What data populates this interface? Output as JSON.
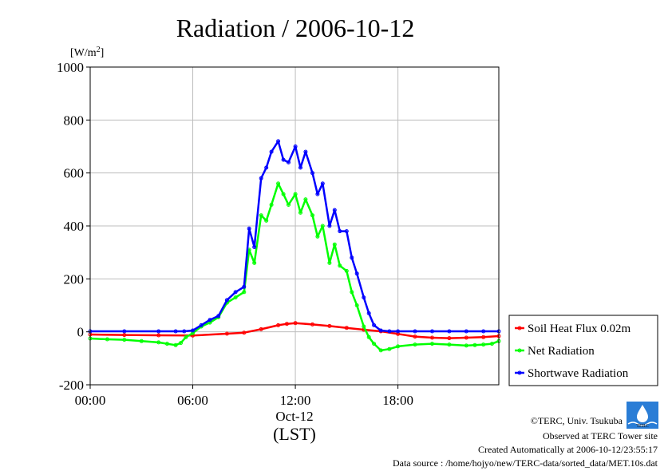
{
  "chart_data": {
    "type": "line",
    "title": "Radiation / 2006-10-12",
    "ylabel_unit": "[W/m",
    "ylabel_unit_sup": "2",
    "ylabel_unit_close": "]",
    "ylim": [
      -200,
      1000
    ],
    "yticks": [
      -200,
      0,
      200,
      400,
      600,
      800,
      1000
    ],
    "xlim": [
      0,
      23.9
    ],
    "xticks": [
      {
        "value": 0,
        "label": "00:00"
      },
      {
        "value": 6,
        "label": "06:00"
      },
      {
        "value": 12,
        "label": "12:00"
      },
      {
        "value": 18,
        "label": "18:00"
      }
    ],
    "date_label": "Oct-12",
    "xlabel": "(LST)",
    "grid": true,
    "legend_position": "right",
    "series": [
      {
        "name": "Soil Heat Flux 0.02m",
        "color": "#ff0000",
        "x": [
          0,
          2,
          4,
          6,
          8,
          9,
          10,
          11,
          11.5,
          12,
          13,
          14,
          15,
          16,
          17,
          18,
          19,
          20,
          21,
          22,
          23,
          23.9
        ],
        "y": [
          -10,
          -12,
          -13,
          -14,
          -7,
          -3,
          10,
          25,
          30,
          33,
          28,
          22,
          15,
          8,
          2,
          -8,
          -18,
          -22,
          -24,
          -22,
          -20,
          -16
        ]
      },
      {
        "name": "Net Radiation",
        "color": "#00ff00",
        "x": [
          0,
          1,
          2,
          3,
          4,
          4.5,
          5,
          5.3,
          5.6,
          6,
          6.5,
          7,
          7.5,
          8,
          8.5,
          9,
          9.3,
          9.6,
          10,
          10.3,
          10.6,
          11,
          11.3,
          11.6,
          12,
          12.3,
          12.6,
          13,
          13.3,
          13.6,
          14,
          14.3,
          14.6,
          15,
          15.3,
          15.6,
          16,
          16.3,
          16.6,
          17,
          17.5,
          18,
          19,
          20,
          21,
          22,
          22.5,
          23,
          23.5,
          23.9
        ],
        "y": [
          -25,
          -28,
          -30,
          -35,
          -40,
          -45,
          -50,
          -42,
          -20,
          -5,
          20,
          35,
          55,
          110,
          130,
          150,
          310,
          260,
          440,
          420,
          480,
          560,
          520,
          480,
          520,
          450,
          500,
          440,
          360,
          400,
          260,
          330,
          250,
          230,
          150,
          100,
          20,
          -20,
          -45,
          -70,
          -65,
          -55,
          -48,
          -45,
          -48,
          -52,
          -50,
          -48,
          -45,
          -35
        ]
      },
      {
        "name": "Shortwave Radiation",
        "color": "#0000ff",
        "x": [
          0,
          2,
          4,
          5,
          5.5,
          6,
          6.5,
          7,
          7.5,
          8,
          8.5,
          9,
          9.3,
          9.6,
          10,
          10.3,
          10.6,
          11,
          11.3,
          11.6,
          12,
          12.3,
          12.6,
          13,
          13.3,
          13.6,
          14,
          14.3,
          14.6,
          15,
          15.3,
          15.6,
          16,
          16.3,
          16.6,
          17,
          17.5,
          18,
          19,
          20,
          21,
          22,
          23,
          23.9
        ],
        "y": [
          2,
          2,
          2,
          2,
          2,
          5,
          25,
          45,
          60,
          120,
          150,
          170,
          390,
          320,
          580,
          620,
          680,
          720,
          650,
          640,
          700,
          620,
          680,
          600,
          520,
          560,
          400,
          460,
          380,
          380,
          280,
          220,
          130,
          70,
          25,
          5,
          2,
          2,
          2,
          2,
          2,
          2,
          2,
          2
        ]
      }
    ]
  },
  "credits": [
    "©TERC, Univ. Tsukuba",
    "Observed at TERC Tower site",
    "Created Automatically at 2006-10-12/23:55:17",
    "Data source : /home/hojyo/new/TERC-data/sorted_data/MET.10s.dat"
  ],
  "logo_text": "TERC"
}
